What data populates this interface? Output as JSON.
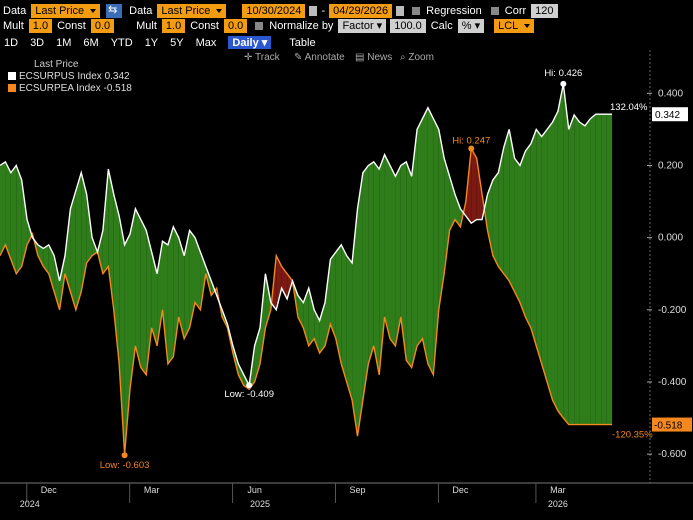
{
  "toolbar": {
    "row1": {
      "data_label": "Data",
      "data_value": "Last Price",
      "data2_label": "Data",
      "data2_value": "Last Price",
      "start_date": "10/30/2024",
      "end_date": "04/29/2026",
      "regression_label": "Regression",
      "corr_label": "Corr",
      "corr_value": "120"
    },
    "row2": {
      "mult_label": "Mult",
      "mult_value": "1.0",
      "const_label": "Const",
      "const_value": "0.0",
      "mult2_label": "Mult",
      "mult2_value": "1.0",
      "const2_label": "Const",
      "const2_value": "0.0",
      "normalize_label": "Normalize by",
      "normalize_value": "Factor",
      "factor_value": "100.0",
      "calc_label": "Calc",
      "calc_value": "%",
      "currency_value": "LCL"
    },
    "timeframes": [
      "1D",
      "3D",
      "1M",
      "6M",
      "YTD",
      "1Y",
      "5Y",
      "Max"
    ],
    "frequency": "Daily",
    "table_label": "Table"
  },
  "tools": {
    "track": "Track",
    "annotate": "Annotate",
    "news": "News",
    "zoom": "Zoom"
  },
  "legend": {
    "title": "Last Price",
    "items": [
      {
        "name": "ECSURPUS Index",
        "value": "0.342",
        "color": "#ffffff"
      },
      {
        "name": "ECSURPEA Index",
        "value": "-0.518",
        "color": "#f5871f"
      }
    ]
  },
  "chart_data": {
    "type": "line",
    "ylim": [
      -0.68,
      0.52
    ],
    "yticks": [
      "0.400",
      "0.200",
      "0.000",
      "-0.200",
      "-0.400",
      "-0.600"
    ],
    "ytick_values": [
      0.4,
      0.2,
      0.0,
      -0.2,
      -0.4,
      -0.6
    ],
    "xticks": [
      "Dec",
      "Mar",
      "Jun",
      "Sep",
      "Dec",
      "Mar"
    ],
    "xtick_values": [
      0.09,
      0.28,
      0.47,
      0.66,
      0.85,
      1.03
    ],
    "xyears": [
      "2024",
      "2025",
      "2026"
    ],
    "xyear_values": [
      0.055,
      0.48,
      1.03
    ],
    "xlim": [
      0.0,
      1.2
    ],
    "series": [
      {
        "name": "ECSURPUS Index",
        "color": "#ffffff",
        "x": [
          0.0,
          0.01,
          0.02,
          0.03,
          0.04,
          0.05,
          0.06,
          0.07,
          0.08,
          0.09,
          0.1,
          0.11,
          0.12,
          0.13,
          0.14,
          0.15,
          0.16,
          0.17,
          0.18,
          0.19,
          0.2,
          0.21,
          0.22,
          0.23,
          0.24,
          0.25,
          0.26,
          0.27,
          0.28,
          0.29,
          0.3,
          0.31,
          0.32,
          0.33,
          0.34,
          0.35,
          0.36,
          0.37,
          0.38,
          0.39,
          0.4,
          0.41,
          0.42,
          0.43,
          0.44,
          0.45,
          0.46,
          0.47,
          0.48,
          0.49,
          0.5,
          0.51,
          0.52,
          0.53,
          0.54,
          0.55,
          0.56,
          0.57,
          0.58,
          0.59,
          0.6,
          0.61,
          0.62,
          0.63,
          0.64,
          0.65,
          0.66,
          0.67,
          0.68,
          0.69,
          0.7,
          0.71,
          0.72,
          0.73,
          0.74,
          0.75,
          0.76,
          0.77,
          0.78,
          0.79,
          0.8,
          0.81,
          0.82,
          0.83,
          0.84,
          0.85,
          0.86,
          0.87,
          0.88,
          0.89,
          0.9,
          0.91,
          0.92,
          0.93,
          0.94,
          0.95,
          0.96,
          0.97,
          0.98,
          0.99,
          1.0,
          1.01,
          1.02,
          1.03,
          1.04,
          1.05,
          1.06,
          1.07,
          1.08,
          1.09,
          1.1,
          1.11,
          1.12,
          1.13
        ],
        "values": [
          0.2,
          0.21,
          0.18,
          0.2,
          0.16,
          0.05,
          0.0,
          -0.02,
          -0.03,
          -0.02,
          -0.05,
          -0.12,
          -0.05,
          0.08,
          0.13,
          0.18,
          0.12,
          0.0,
          -0.04,
          0.02,
          0.19,
          0.12,
          0.06,
          -0.02,
          0.01,
          0.08,
          0.05,
          0.02,
          -0.04,
          -0.1,
          -0.01,
          -0.02,
          0.03,
          0.0,
          -0.05,
          0.02,
          0.0,
          -0.04,
          -0.08,
          -0.12,
          -0.16,
          -0.2,
          -0.24,
          -0.3,
          -0.35,
          -0.38,
          -0.409,
          -0.3,
          -0.25,
          -0.1,
          -0.18,
          -0.2,
          -0.14,
          -0.17,
          -0.12,
          -0.16,
          -0.18,
          -0.14,
          -0.2,
          -0.23,
          -0.18,
          -0.06,
          -0.04,
          -0.02,
          -0.05,
          -0.07,
          0.08,
          0.18,
          0.2,
          0.21,
          0.19,
          0.23,
          0.2,
          0.17,
          0.2,
          0.21,
          0.17,
          0.3,
          0.33,
          0.36,
          0.33,
          0.3,
          0.22,
          0.17,
          0.12,
          0.08,
          0.06,
          0.04,
          0.05,
          0.05,
          0.12,
          0.16,
          0.18,
          0.25,
          0.3,
          0.22,
          0.2,
          0.24,
          0.26,
          0.3,
          0.28,
          0.3,
          0.32,
          0.35,
          0.426,
          0.3,
          0.34,
          0.32,
          0.31,
          0.33,
          0.342,
          0.342,
          0.342,
          0.342
        ]
      },
      {
        "name": "ECSURPEA Index",
        "color": "#f5871f",
        "x": [
          0.0,
          0.01,
          0.02,
          0.03,
          0.04,
          0.05,
          0.06,
          0.07,
          0.08,
          0.09,
          0.1,
          0.11,
          0.12,
          0.13,
          0.14,
          0.15,
          0.16,
          0.17,
          0.18,
          0.19,
          0.2,
          0.21,
          0.22,
          0.23,
          0.24,
          0.25,
          0.26,
          0.27,
          0.28,
          0.29,
          0.3,
          0.31,
          0.32,
          0.33,
          0.34,
          0.35,
          0.36,
          0.37,
          0.38,
          0.39,
          0.4,
          0.41,
          0.42,
          0.43,
          0.44,
          0.45,
          0.46,
          0.47,
          0.48,
          0.49,
          0.5,
          0.51,
          0.52,
          0.53,
          0.54,
          0.55,
          0.56,
          0.57,
          0.58,
          0.59,
          0.6,
          0.61,
          0.62,
          0.63,
          0.64,
          0.65,
          0.66,
          0.67,
          0.68,
          0.69,
          0.7,
          0.71,
          0.72,
          0.73,
          0.74,
          0.75,
          0.76,
          0.77,
          0.78,
          0.79,
          0.8,
          0.81,
          0.82,
          0.83,
          0.84,
          0.85,
          0.86,
          0.87,
          0.88,
          0.89,
          0.9,
          0.91,
          0.92,
          0.93,
          0.94,
          0.95,
          0.96,
          0.97,
          0.98,
          0.99,
          1.0,
          1.01,
          1.02,
          1.03,
          1.04,
          1.05,
          1.06,
          1.07,
          1.08,
          1.09,
          1.1,
          1.11,
          1.12,
          1.13
        ],
        "values": [
          -0.05,
          -0.02,
          -0.06,
          -0.1,
          -0.08,
          -0.02,
          0.01,
          -0.05,
          -0.08,
          -0.1,
          -0.15,
          -0.2,
          -0.1,
          -0.15,
          -0.2,
          -0.15,
          -0.07,
          -0.05,
          -0.04,
          -0.1,
          -0.08,
          -0.2,
          -0.35,
          -0.6,
          -0.42,
          -0.3,
          -0.36,
          -0.38,
          -0.25,
          -0.3,
          -0.2,
          -0.35,
          -0.33,
          -0.22,
          -0.28,
          -0.25,
          -0.18,
          -0.2,
          -0.1,
          -0.16,
          -0.14,
          -0.22,
          -0.25,
          -0.32,
          -0.38,
          -0.41,
          -0.42,
          -0.4,
          -0.35,
          -0.25,
          -0.2,
          -0.05,
          -0.08,
          -0.1,
          -0.12,
          -0.22,
          -0.25,
          -0.3,
          -0.28,
          -0.32,
          -0.3,
          -0.24,
          -0.28,
          -0.35,
          -0.4,
          -0.45,
          -0.55,
          -0.45,
          -0.35,
          -0.3,
          -0.38,
          -0.22,
          -0.28,
          -0.3,
          -0.22,
          -0.34,
          -0.36,
          -0.3,
          -0.28,
          -0.35,
          -0.38,
          -0.2,
          -0.1,
          0.02,
          0.05,
          0.03,
          0.1,
          0.247,
          0.22,
          0.12,
          0.02,
          -0.05,
          -0.08,
          -0.1,
          -0.12,
          -0.15,
          -0.18,
          -0.22,
          -0.25,
          -0.3,
          -0.35,
          -0.4,
          -0.45,
          -0.48,
          -0.5,
          -0.518,
          -0.518,
          -0.518,
          -0.518,
          -0.518,
          -0.518,
          -0.518,
          -0.518,
          -0.518
        ]
      }
    ],
    "annotations": {
      "hi_us": "Hi: 0.426",
      "low_us": "Low: -0.409",
      "hi_ea": "Hi: 0.247",
      "low_ea": "Low: -0.603",
      "pct_us": "132.04%",
      "pct_ea": "-120.35%",
      "last_us": "0.342",
      "last_ea": "-0.518"
    }
  }
}
